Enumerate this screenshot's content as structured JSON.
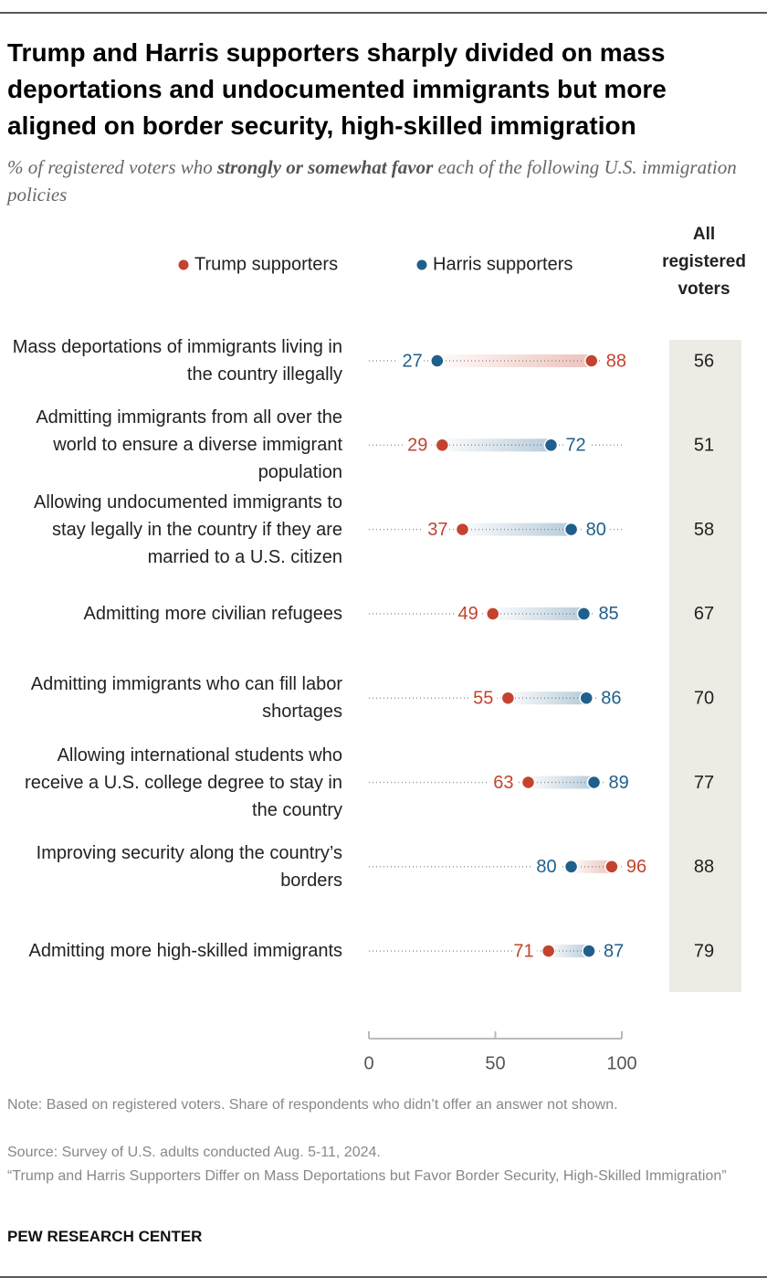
{
  "chart_data": {
    "type": "dumbbell",
    "title": "Trump and Harris supporters sharply divided on mass deportations and undocumented immigrants but more aligned on border security, high-skilled immigration",
    "subtitle": [
      "% of registered voters who ",
      "strongly or somewhat favor",
      " each of the following U.S. immigration policies"
    ],
    "categories": [
      "Mass deportations of immigrants living in the country illegally",
      "Admitting immigrants from all over the world to ensure a diverse immigrant population",
      "Allowing undocumented immigrants to stay legally in the country if they are married to a U.S. citizen",
      "Admitting more civilian refugees",
      "Admitting immigrants who can fill labor shortages",
      "Allowing international students who receive a U.S. college degree to stay in the country",
      "Improving security along the country’s borders",
      "Admitting more high-skilled immigrants"
    ],
    "series": [
      {
        "name": "Trump supporters",
        "color": "#c4432e",
        "values": [
          88,
          29,
          37,
          49,
          55,
          63,
          96,
          71
        ]
      },
      {
        "name": "Harris supporters",
        "color": "#1f5f8b",
        "values": [
          27,
          72,
          80,
          85,
          86,
          89,
          80,
          87
        ]
      }
    ],
    "total": {
      "name": "All registered voters",
      "values": [
        56,
        51,
        58,
        67,
        70,
        77,
        88,
        79
      ]
    },
    "xlim": [
      0,
      100
    ],
    "xticks": [
      0,
      50,
      100
    ],
    "note": "Note: Based on registered voters. Share of respondents who didn’t offer an answer not shown.",
    "source": "Source: Survey of U.S. adults conducted Aug. 5-11, 2024.",
    "citation": "“Trump and Harris Supporters Differ on Mass Deportations but Favor Border Security, High-Skilled Immigration”",
    "credit": "PEW RESEARCH CENTER"
  }
}
